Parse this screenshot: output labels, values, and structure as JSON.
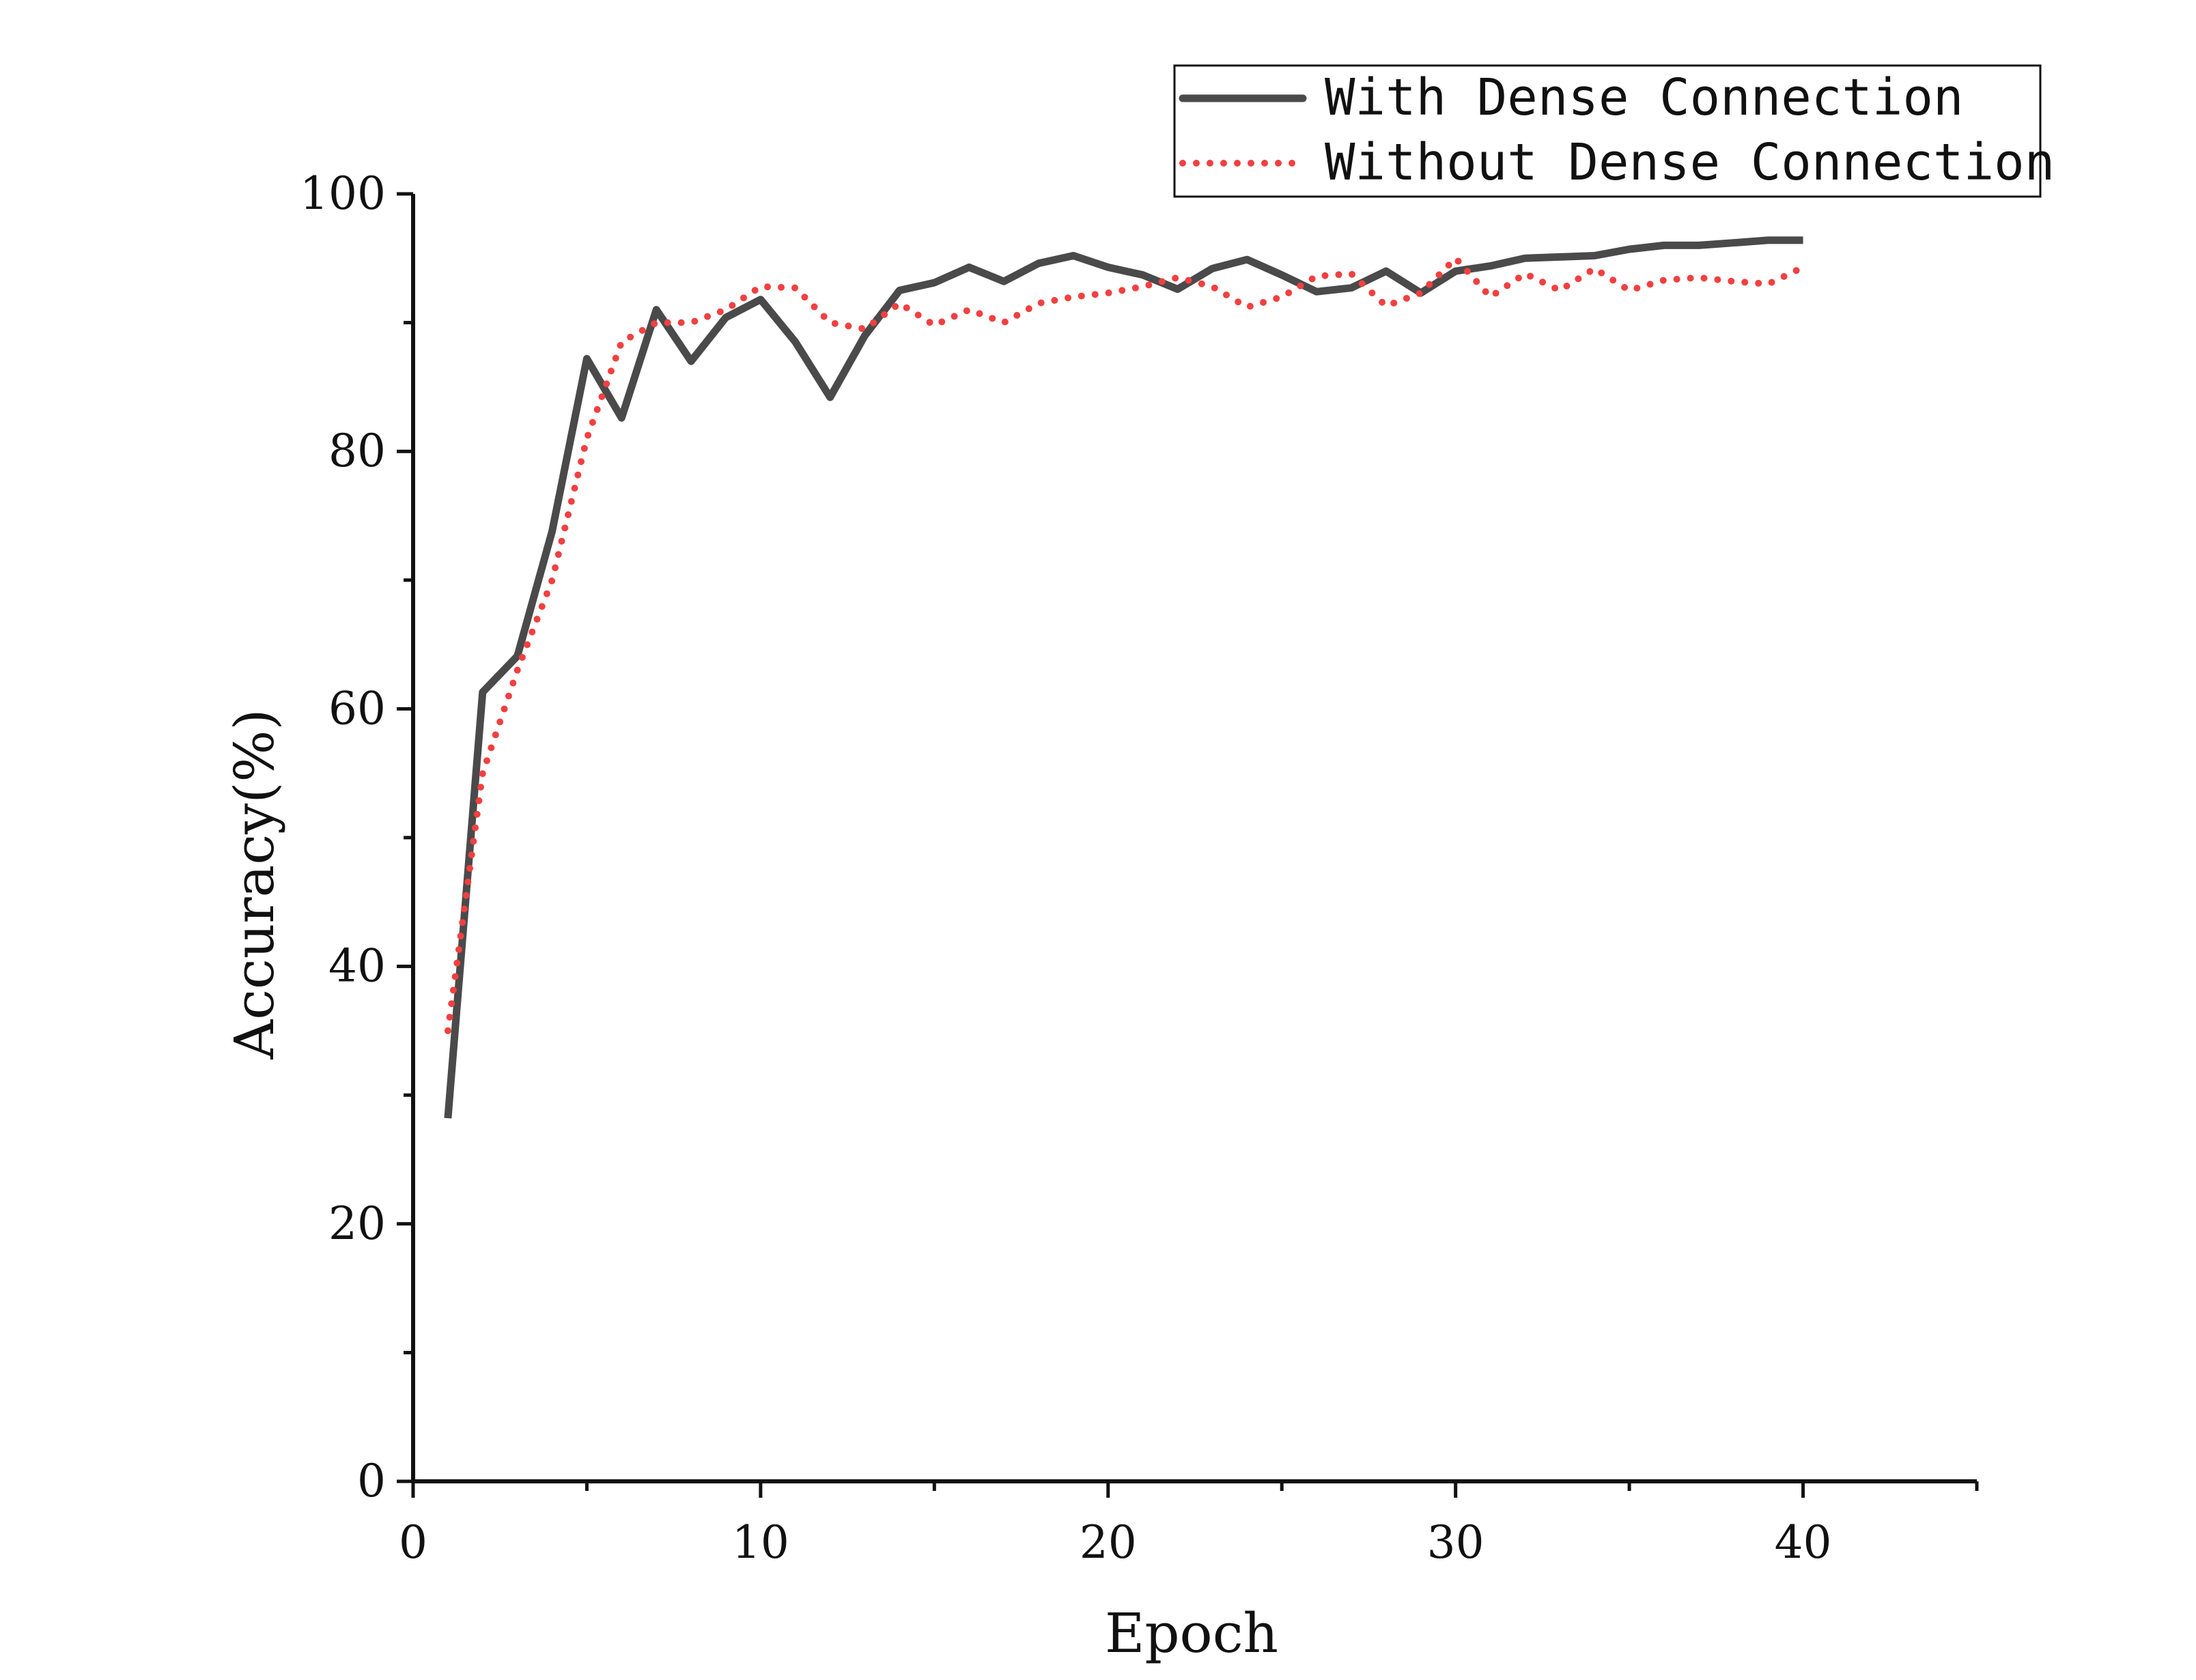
{
  "chart_data": {
    "type": "line",
    "title": "",
    "xlabel": "Epoch",
    "ylabel": "Accuracy(%)",
    "xlim": [
      0,
      45
    ],
    "ylim": [
      0,
      100
    ],
    "xticks": [
      0,
      10,
      20,
      30,
      40
    ],
    "yticks": [
      0,
      20,
      40,
      60,
      80,
      100
    ],
    "grid": false,
    "legend_position": "top-right",
    "x": [
      1,
      2,
      3,
      4,
      5,
      6,
      7,
      8,
      9,
      10,
      11,
      12,
      13,
      14,
      15,
      16,
      17,
      18,
      19,
      20,
      21,
      22,
      23,
      24,
      25,
      26,
      27,
      28,
      29,
      30,
      31,
      32,
      33,
      34,
      35,
      36,
      37,
      38,
      39,
      40
    ],
    "series": [
      {
        "name": "With Dense Connection",
        "color": "#4a4a4a",
        "style": "solid",
        "values": [
          28.2,
          61.3,
          64.1,
          73.8,
          87.2,
          82.6,
          91.0,
          87.0,
          90.4,
          91.8,
          88.5,
          84.2,
          89.0,
          92.5,
          93.1,
          94.3,
          93.2,
          94.6,
          95.2,
          94.3,
          93.7,
          92.6,
          94.2,
          94.9,
          93.7,
          92.4,
          92.7,
          94.0,
          92.3,
          94.0,
          94.4,
          95.0,
          95.1,
          95.2,
          95.7,
          96.0,
          96.0,
          96.2,
          96.4,
          96.4
        ]
      },
      {
        "name": "Without Dense Connection",
        "color": "#f04040",
        "style": "dotted",
        "values": [
          35.0,
          55.0,
          63.0,
          70.0,
          81.0,
          88.5,
          90.0,
          90.0,
          91.0,
          92.8,
          92.7,
          90.0,
          89.5,
          91.5,
          89.8,
          91.0,
          90.0,
          91.5,
          92.0,
          92.3,
          92.8,
          93.5,
          92.8,
          91.2,
          92.0,
          93.6,
          93.8,
          91.3,
          92.3,
          95.0,
          92.0,
          93.8,
          92.5,
          94.2,
          92.5,
          93.3,
          93.5,
          93.2,
          93.0,
          94.3
        ]
      }
    ]
  }
}
